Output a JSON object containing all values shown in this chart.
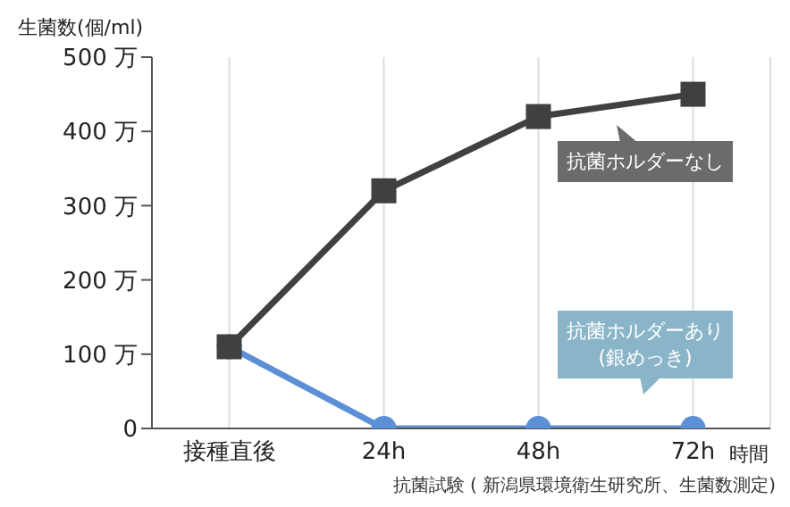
{
  "chart_data": {
    "type": "line",
    "ylabel": "生菌数(個/ml)",
    "xlabel": "時間",
    "categories": [
      "接種直後",
      "24h",
      "48h",
      "72h"
    ],
    "series": [
      {
        "name": "抗菌ホルダーなし",
        "color": "#404040",
        "marker": "square",
        "values": [
          110,
          320,
          420,
          450
        ]
      },
      {
        "name": "抗菌ホルダーあり\n(銀めっき)",
        "color": "#5b8fd6",
        "marker": "circle",
        "values": [
          110,
          0,
          0,
          0
        ]
      }
    ],
    "ylim": [
      0,
      500
    ],
    "yticks": [
      0,
      {
        "value": 100,
        "label": "100 万"
      },
      {
        "value": 200,
        "label": "200 万"
      },
      {
        "value": 300,
        "label": "300 万"
      },
      {
        "value": 400,
        "label": "400 万"
      },
      {
        "value": 500,
        "label": "500 万"
      }
    ],
    "grid": "x",
    "line_style": "solid",
    "annotations": [
      "抗菌試験 ( 新潟県環境衛生研究所、生菌数測定)"
    ]
  }
}
